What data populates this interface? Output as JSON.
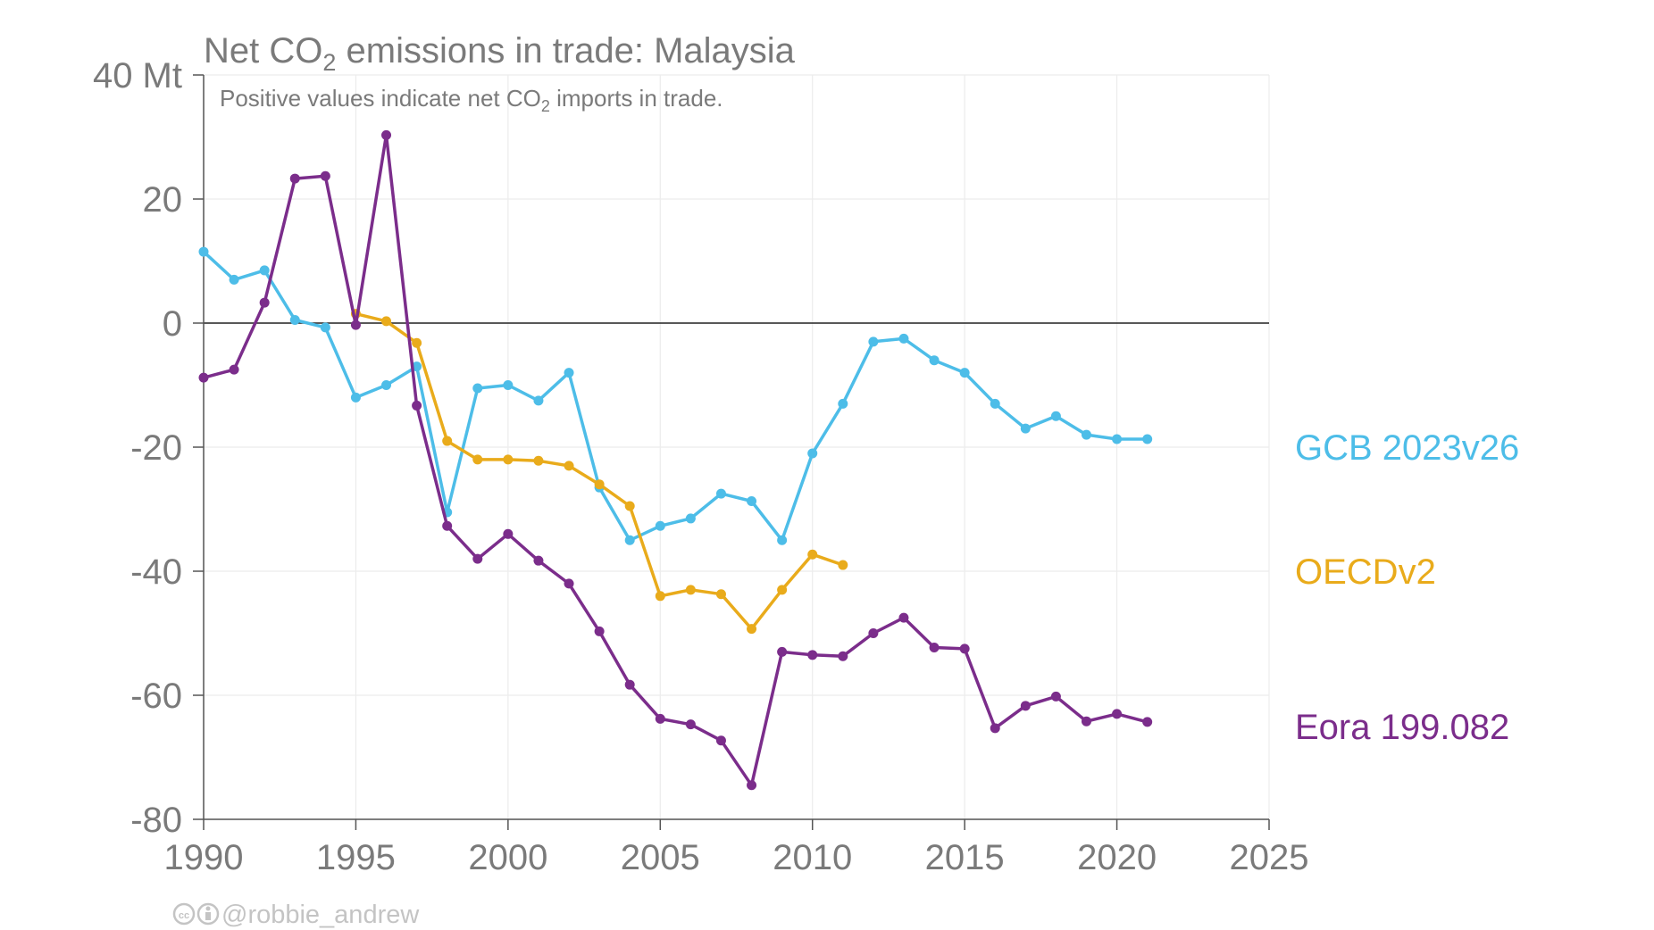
{
  "chart_data": {
    "type": "line",
    "title": {
      "pre": "Net CO",
      "sub": "2",
      "post": " emissions in trade: Malaysia"
    },
    "subtitle": {
      "pre": "Positive values indicate net CO",
      "sub": "2",
      "post": " imports in trade."
    },
    "y_unit": "Mt",
    "xlim": [
      1990,
      2025
    ],
    "ylim": [
      -80,
      40
    ],
    "x_ticks": [
      1990,
      1995,
      2000,
      2005,
      2010,
      2015,
      2020,
      2025
    ],
    "y_ticks": [
      -80,
      -60,
      -40,
      -20,
      0,
      20,
      40
    ],
    "y_tick_labels": [
      "-80",
      "-60",
      "-40",
      "-20",
      "0",
      "20",
      "40 Mt"
    ],
    "grid": true,
    "zero_line": true,
    "legend_placement": "right, labels at series ends",
    "series": [
      {
        "name": "GCB 2023v26",
        "color": "#4dbde8",
        "x": [
          1990,
          1991,
          1992,
          1993,
          1994,
          1995,
          1996,
          1997,
          1998,
          1999,
          2000,
          2001,
          2002,
          2003,
          2004,
          2005,
          2006,
          2007,
          2008,
          2009,
          2010,
          2011,
          2012,
          2013,
          2014,
          2015,
          2016,
          2017,
          2018,
          2019,
          2020,
          2021
        ],
        "y": [
          11.5,
          7,
          8.5,
          0.5,
          -0.7,
          -12,
          -10,
          -7,
          -30.5,
          -10.5,
          -10,
          -12.5,
          -8,
          -26.5,
          -35,
          -32.7,
          -31.5,
          -27.5,
          -28.7,
          -35,
          -21,
          -13,
          -3,
          -2.5,
          -6,
          -8,
          -13,
          -17,
          -15,
          -18,
          -18.7,
          -18.7
        ]
      },
      {
        "name": "OECDv2",
        "color": "#e9ab1b",
        "x": [
          1995,
          1996,
          1997,
          1998,
          1999,
          2000,
          2001,
          2002,
          2003,
          2004,
          2005,
          2006,
          2007,
          2008,
          2009,
          2010,
          2011
        ],
        "y": [
          1.5,
          0.3,
          -3.2,
          -19,
          -22,
          -22,
          -22.2,
          -23,
          -26,
          -29.5,
          -44,
          -43,
          -43.7,
          -49.3,
          -43,
          -37.3,
          -39
        ]
      },
      {
        "name": "Eora 199.082",
        "color": "#7b2d8b",
        "x": [
          1990,
          1991,
          1992,
          1993,
          1994,
          1995,
          1996,
          1997,
          1998,
          1999,
          2000,
          2001,
          2002,
          2003,
          2004,
          2005,
          2006,
          2007,
          2008,
          2009,
          2010,
          2011,
          2012,
          2013,
          2014,
          2015,
          2016,
          2017,
          2018,
          2019,
          2020,
          2021
        ],
        "y": [
          -8.8,
          -7.5,
          3.3,
          23.3,
          23.7,
          -0.3,
          30.3,
          -13.3,
          -32.7,
          -38,
          -34,
          -38.3,
          -42,
          -49.7,
          -58.3,
          -63.8,
          -64.7,
          -67.3,
          -74.5,
          -53,
          -53.5,
          -53.7,
          -50,
          -47.5,
          -52.3,
          -52.5,
          -65.3,
          -61.7,
          -60.2,
          -64.2,
          -63,
          -64.3
        ]
      }
    ]
  },
  "credit": {
    "icon_text": "cc",
    "label": "@robbie_andrew"
  }
}
